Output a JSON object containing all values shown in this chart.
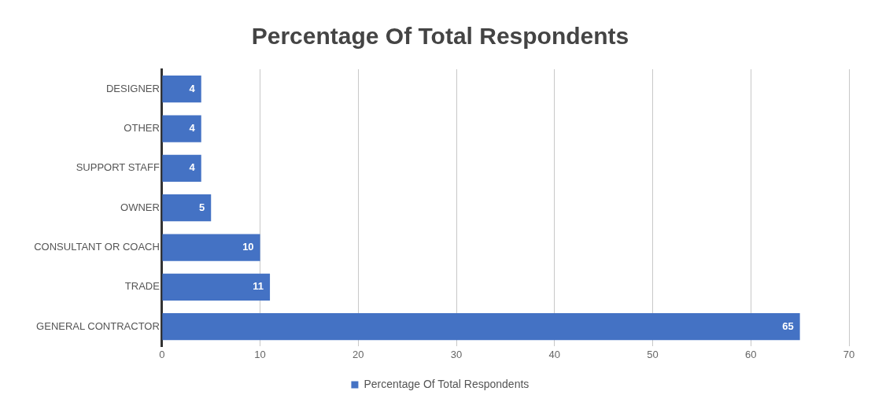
{
  "chart_data": {
    "type": "bar",
    "orientation": "horizontal",
    "title": "Percentage Of Total Respondents",
    "categories": [
      "DESIGNER",
      "OTHER",
      "SUPPORT STAFF",
      "OWNER",
      "CONSULTANT OR COACH",
      "TRADE",
      "GENERAL CONTRACTOR"
    ],
    "series": [
      {
        "name": "Percentage Of Total Respondents",
        "color": "#4472c4",
        "values": [
          4,
          4,
          4,
          5,
          10,
          11,
          65
        ]
      }
    ],
    "xlim": [
      0,
      70
    ],
    "xticks": [
      0,
      10,
      20,
      30,
      40,
      50,
      60,
      70
    ],
    "grid": "x",
    "legend": "bottom",
    "data_labels": true
  }
}
